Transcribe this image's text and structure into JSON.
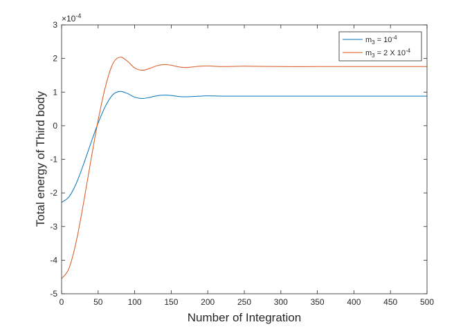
{
  "chart_data": {
    "type": "line",
    "xlabel": "Number of Integration",
    "ylabel": "Total energy of Third body",
    "exponent_base": "×10",
    "exponent_power": "-4",
    "xlim": [
      0,
      500
    ],
    "ylim": [
      -5,
      3
    ],
    "xticks": [
      "0",
      "50",
      "100",
      "150",
      "200",
      "250",
      "300",
      "350",
      "400",
      "450",
      "500"
    ],
    "yticks": [
      "-5",
      "-4",
      "-3",
      "-2",
      "-1",
      "0",
      "1",
      "2",
      "3"
    ],
    "grid": false,
    "legend_position": "top-right",
    "series": [
      {
        "name": "m3 = 10^-4",
        "legend_main": "m",
        "legend_sub": "3",
        "legend_rest": " = 10",
        "legend_sup": "-4",
        "color": "#0072BD",
        "x": [
          0,
          10,
          20,
          30,
          40,
          50,
          60,
          70,
          80,
          90,
          100,
          110,
          120,
          130,
          140,
          150,
          160,
          170,
          180,
          190,
          200,
          220,
          250,
          300,
          350,
          400,
          450,
          500
        ],
        "y": [
          -2.28,
          -2.12,
          -1.72,
          -1.15,
          -0.52,
          0.08,
          0.58,
          0.92,
          1.02,
          0.96,
          0.85,
          0.81,
          0.84,
          0.89,
          0.91,
          0.9,
          0.87,
          0.86,
          0.87,
          0.88,
          0.89,
          0.88,
          0.88,
          0.88,
          0.88,
          0.88,
          0.88,
          0.88
        ]
      },
      {
        "name": "m3 = 2 X 10^-4",
        "legend_main": "m",
        "legend_sub": "3",
        "legend_rest": " = 2 X 10",
        "legend_sup": "-4",
        "color": "#D95319",
        "x": [
          0,
          10,
          20,
          30,
          40,
          50,
          60,
          70,
          80,
          90,
          100,
          110,
          120,
          130,
          140,
          150,
          160,
          170,
          180,
          190,
          200,
          220,
          250,
          300,
          350,
          400,
          450,
          500
        ],
        "y": [
          -4.55,
          -4.25,
          -3.45,
          -2.3,
          -1.04,
          0.16,
          1.16,
          1.84,
          2.04,
          1.92,
          1.72,
          1.65,
          1.7,
          1.78,
          1.82,
          1.8,
          1.75,
          1.73,
          1.75,
          1.77,
          1.78,
          1.76,
          1.77,
          1.76,
          1.76,
          1.76,
          1.76,
          1.76
        ]
      }
    ]
  }
}
